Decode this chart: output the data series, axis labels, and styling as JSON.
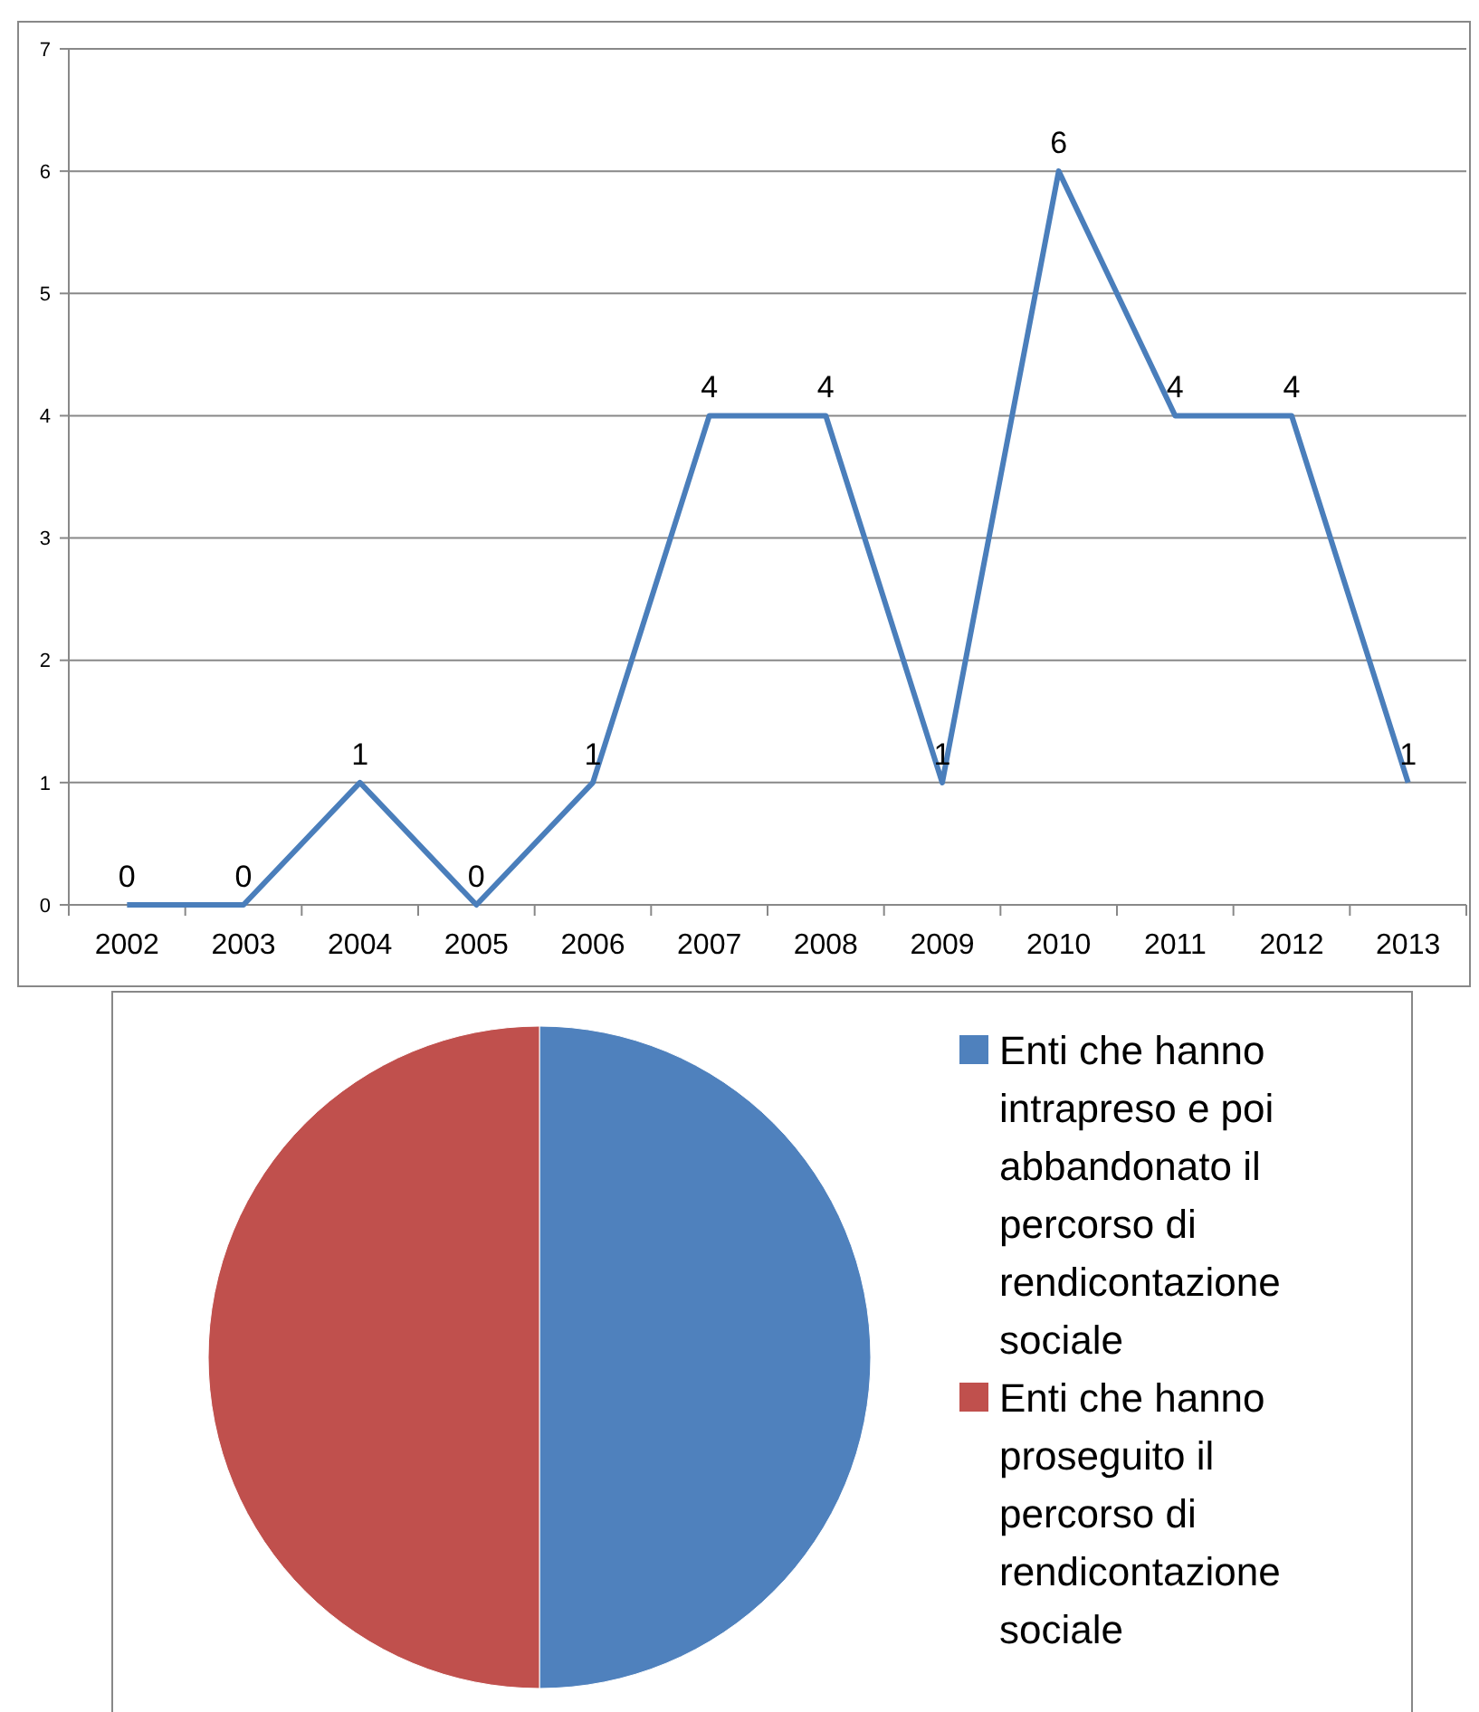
{
  "chart_data": [
    {
      "type": "line",
      "categories": [
        "2002",
        "2003",
        "2004",
        "2005",
        "2006",
        "2007",
        "2008",
        "2009",
        "2010",
        "2011",
        "2012",
        "2013"
      ],
      "values": [
        0,
        0,
        1,
        0,
        1,
        4,
        4,
        1,
        6,
        4,
        4,
        1
      ],
      "color": "#4a7ebb",
      "ylim": [
        0,
        7
      ],
      "yticks": [
        0,
        1,
        2,
        3,
        4,
        5,
        6,
        7
      ],
      "grid": "y",
      "data_labels": true
    },
    {
      "type": "pie",
      "categories": [
        "Enti che hanno intrapreso e poi abbandonato il percorso di rendicontazione sociale",
        "Enti che hanno proseguito il percorso di rendicontazione sociale"
      ],
      "values": [
        50,
        50
      ],
      "colors": [
        "#4f81bd",
        "#c0504d"
      ],
      "legend": "right"
    }
  ]
}
